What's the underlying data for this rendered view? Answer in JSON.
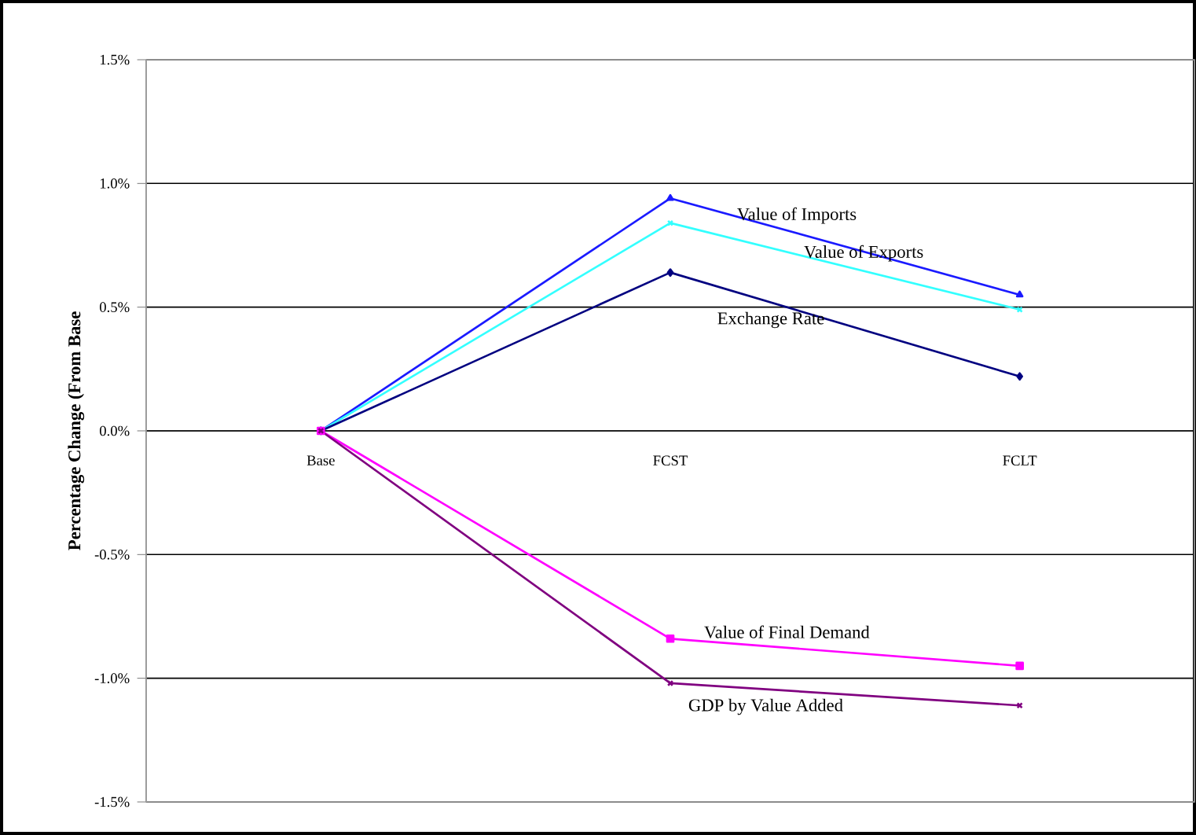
{
  "chart_data": {
    "type": "line",
    "ylabel": "Percentage Change (From Base",
    "categories": [
      "Base",
      "FCST",
      "FCLT"
    ],
    "series": [
      {
        "name": "Value of Imports",
        "color": "#1a1aff",
        "marker": "triangle",
        "values": [
          0,
          0.94,
          0.55
        ]
      },
      {
        "name": "Value of Exports",
        "color": "#33ffff",
        "marker": "cross",
        "values": [
          0,
          0.84,
          0.49
        ]
      },
      {
        "name": "Exchange Rate",
        "color": "#000080",
        "marker": "diamond",
        "values": [
          0,
          0.64,
          0.22
        ]
      },
      {
        "name": "Value of Final Demand",
        "color": "#ff00ff",
        "marker": "square",
        "values": [
          0,
          -0.84,
          -0.95
        ]
      },
      {
        "name": "GDP by Value Added",
        "color": "#800080",
        "marker": "cross",
        "values": [
          0,
          -1.02,
          -1.11
        ]
      }
    ],
    "ylim": [
      -1.5,
      1.5
    ],
    "yticks": [
      {
        "value": -1.5,
        "label": "-1.5%"
      },
      {
        "value": -1.0,
        "label": "-1.0%"
      },
      {
        "value": -0.5,
        "label": "-0.5%"
      },
      {
        "value": 0,
        "label": "0.0%"
      },
      {
        "value": 0.5,
        "label": "0.5%"
      },
      {
        "value": 1.0,
        "label": "1.0%"
      },
      {
        "value": 1.5,
        "label": "1.5%"
      }
    ],
    "grid": "y",
    "line_style": "solid"
  }
}
